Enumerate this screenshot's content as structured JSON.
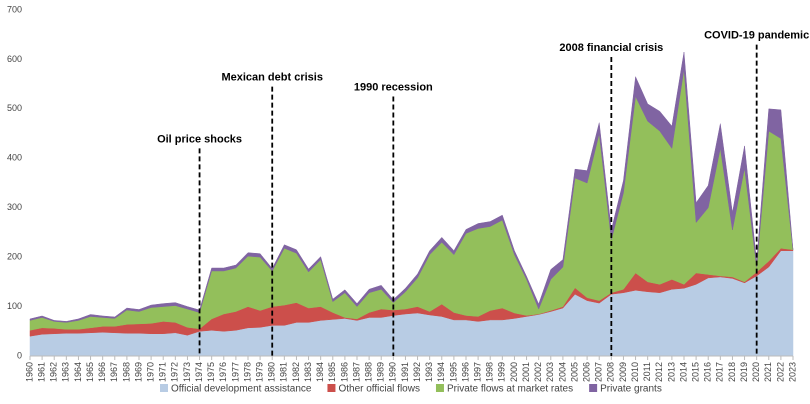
{
  "chart_data": {
    "type": "stacked-area",
    "x": [
      1960,
      1961,
      1962,
      1963,
      1964,
      1965,
      1966,
      1967,
      1968,
      1969,
      1970,
      1971,
      1972,
      1973,
      1974,
      1975,
      1976,
      1977,
      1978,
      1979,
      1980,
      1981,
      1982,
      1983,
      1984,
      1985,
      1986,
      1987,
      1988,
      1989,
      1990,
      1991,
      1992,
      1993,
      1994,
      1995,
      1996,
      1997,
      1998,
      1999,
      2000,
      2001,
      2002,
      2003,
      2004,
      2005,
      2006,
      2007,
      2008,
      2009,
      2010,
      2011,
      2012,
      2013,
      2014,
      2015,
      2016,
      2017,
      2018,
      2019,
      2020,
      2021,
      2022,
      2023
    ],
    "xlim": [
      1960,
      2023
    ],
    "ylim": [
      0,
      700
    ],
    "yticks": [
      0,
      100,
      200,
      300,
      400,
      500,
      600,
      700
    ],
    "series": [
      {
        "name": "Official development assistance",
        "color": "#b8cce4",
        "values": [
          40,
          44,
          45,
          46,
          46,
          47,
          48,
          47,
          46,
          46,
          45,
          45,
          47,
          42,
          50,
          52,
          50,
          52,
          57,
          58,
          62,
          62,
          68,
          68,
          72,
          74,
          76,
          72,
          78,
          78,
          82,
          85,
          87,
          83,
          80,
          73,
          73,
          70,
          73,
          73,
          76,
          80,
          84,
          90,
          97,
          125,
          112,
          107,
          125,
          128,
          133,
          130,
          128,
          135,
          137,
          145,
          158,
          160,
          157,
          148,
          162,
          180,
          213,
          213
        ]
      },
      {
        "name": "Other official flows",
        "color": "#cc4f4b",
        "values": [
          12,
          13,
          11,
          8,
          8,
          10,
          12,
          13,
          18,
          19,
          21,
          25,
          21,
          16,
          5,
          23,
          35,
          38,
          43,
          34,
          38,
          41,
          40,
          29,
          28,
          14,
          2,
          3,
          10,
          17,
          11,
          10,
          13,
          7,
          25,
          15,
          9,
          10,
          19,
          24,
          11,
          2,
          1,
          2,
          3,
          13,
          6,
          5,
          3,
          7,
          35,
          20,
          17,
          20,
          8,
          23,
          7,
          2,
          3,
          2,
          8,
          12,
          5,
          2
        ]
      },
      {
        "name": "Private flows at market rates",
        "color": "#93bf5b",
        "values": [
          20,
          21,
          14,
          14,
          18,
          23,
          18,
          16,
          29,
          25,
          32,
          30,
          34,
          37,
          33,
          97,
          87,
          88,
          102,
          108,
          72,
          115,
          100,
          73,
          95,
          22,
          50,
          25,
          40,
          40,
          15,
          35,
          58,
          115,
          125,
          117,
          166,
          178,
          170,
          178,
          118,
          73,
          10,
          63,
          80,
          222,
          232,
          338,
          107,
          195,
          357,
          325,
          310,
          265,
          435,
          102,
          135,
          258,
          95,
          230,
          10,
          263,
          222,
          0
        ]
      },
      {
        "name": "Private grants",
        "color": "#8064a2",
        "values": [
          3,
          3,
          2,
          2,
          3,
          4,
          3,
          3,
          4,
          4,
          5,
          6,
          6,
          5,
          5,
          6,
          6,
          6,
          7,
          7,
          5,
          7,
          7,
          6,
          6,
          5,
          6,
          6,
          7,
          8,
          6,
          7,
          8,
          8,
          10,
          8,
          8,
          10,
          10,
          10,
          8,
          6,
          10,
          20,
          15,
          18,
          25,
          22,
          20,
          25,
          40,
          35,
          40,
          45,
          35,
          40,
          45,
          50,
          35,
          45,
          10,
          45,
          58,
          0
        ]
      }
    ],
    "annotations": [
      {
        "text": "Oil price shocks",
        "x": 1974,
        "y": 420
      },
      {
        "text": "Mexican debt crisis",
        "x": 1980,
        "y": 545
      },
      {
        "text": "1990 recession",
        "x": 1990,
        "y": 525
      },
      {
        "text": "2008 financial crisis",
        "x": 2008,
        "y": 605
      },
      {
        "text": "COVID-19 pandemic",
        "x": 2020,
        "y": 630
      }
    ]
  }
}
